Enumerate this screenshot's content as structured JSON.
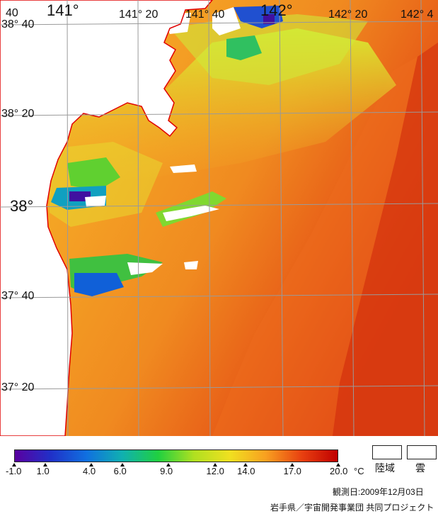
{
  "longitude_labels": [
    {
      "text": "141°",
      "size": "big"
    },
    {
      "text": "141° 20",
      "size": "small"
    },
    {
      "text": "141° 40",
      "size": "small"
    },
    {
      "text": "142°",
      "size": "big"
    },
    {
      "text": "142° 20",
      "size": "small"
    },
    {
      "text": "142° 4",
      "size": "small"
    }
  ],
  "latitude_labels": [
    {
      "text": "38° 40",
      "size": "small"
    },
    {
      "text": "38° 20",
      "size": "small"
    },
    {
      "text": "38°",
      "size": "big"
    },
    {
      "text": "37° 40",
      "size": "small"
    },
    {
      "text": "37° 20",
      "size": "small"
    }
  ],
  "corner_fragment": "40",
  "legend": {
    "ticks": [
      "-1.0",
      "1.0",
      "4.0",
      "6.0",
      "9.0",
      "12.0",
      "14.0",
      "17.0",
      "20.0"
    ],
    "unit": "°C",
    "range": [
      -1.0,
      20.0
    ],
    "colors": [
      "#5a00a0",
      "#2030c8",
      "#1070e0",
      "#10b0b0",
      "#20d040",
      "#b0e020",
      "#f0e020",
      "#f8a020",
      "#e84010",
      "#c00000"
    ],
    "land_label": "陸域",
    "cloud_label": "雲"
  },
  "observation_date": "観測日:2009年12月03日",
  "credit": "岩手県／宇宙開発事業団 共同プロジェクト"
}
